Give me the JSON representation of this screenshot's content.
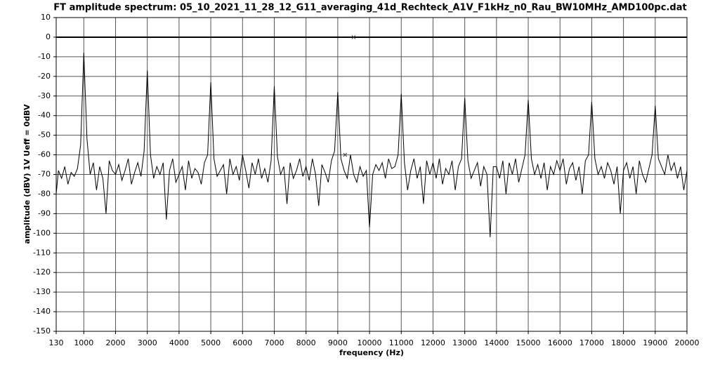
{
  "chart_data": {
    "type": "line",
    "title": "FT amplitude spectrum: 05_10_2021_11_28_12_G11_averaging_41d_Rechteck_A1V_F1kHz_n0_Rau_BW10MHz_AMD100pc.dat",
    "xlabel": "frequency (Hz)",
    "ylabel": "amplitude (dBV) 1V Ueff = 0dBV",
    "xlim": [
      130,
      20000
    ],
    "ylim": [
      -150,
      10
    ],
    "xticks": [
      130,
      1000,
      2000,
      3000,
      4000,
      5000,
      6000,
      7000,
      8000,
      9000,
      10000,
      11000,
      12000,
      13000,
      14000,
      15000,
      16000,
      17000,
      18000,
      19000,
      20000
    ],
    "yticks": [
      -150,
      -140,
      -130,
      -120,
      -110,
      -100,
      -90,
      -80,
      -70,
      -60,
      -50,
      -40,
      -30,
      -20,
      -10,
      0,
      10
    ],
    "grid": true,
    "x": [
      130,
      200,
      300,
      400,
      500,
      600,
      700,
      800,
      900,
      1000,
      1100,
      1200,
      1300,
      1400,
      1500,
      1600,
      1700,
      1800,
      1900,
      2000,
      2100,
      2200,
      2300,
      2400,
      2500,
      2600,
      2700,
      2800,
      2900,
      3000,
      3100,
      3200,
      3300,
      3400,
      3500,
      3600,
      3700,
      3800,
      3900,
      4000,
      4100,
      4200,
      4300,
      4400,
      4500,
      4600,
      4700,
      4800,
      4900,
      5000,
      5100,
      5200,
      5300,
      5400,
      5500,
      5600,
      5700,
      5800,
      5900,
      6000,
      6100,
      6200,
      6300,
      6400,
      6500,
      6600,
      6700,
      6800,
      6900,
      7000,
      7100,
      7200,
      7300,
      7400,
      7500,
      7600,
      7700,
      7800,
      7900,
      8000,
      8100,
      8200,
      8300,
      8400,
      8500,
      8600,
      8700,
      8800,
      8900,
      9000,
      9100,
      9200,
      9300,
      9400,
      9500,
      9600,
      9700,
      9800,
      9900,
      10000,
      10100,
      10200,
      10300,
      10400,
      10500,
      10600,
      10700,
      10800,
      10900,
      11000,
      11100,
      11200,
      11300,
      11400,
      11500,
      11600,
      11700,
      11800,
      11900,
      12000,
      12100,
      12200,
      12300,
      12400,
      12500,
      12600,
      12700,
      12800,
      12900,
      13000,
      13100,
      13200,
      13300,
      13400,
      13500,
      13600,
      13700,
      13800,
      13900,
      14000,
      14100,
      14200,
      14300,
      14400,
      14500,
      14600,
      14700,
      14800,
      14900,
      15000,
      15100,
      15200,
      15300,
      15400,
      15500,
      15600,
      15700,
      15800,
      15900,
      16000,
      16100,
      16200,
      16300,
      16400,
      16500,
      16600,
      16700,
      16800,
      16900,
      17000,
      17100,
      17200,
      17300,
      17400,
      17500,
      17600,
      17700,
      17800,
      17900,
      18000,
      18100,
      18200,
      18300,
      18400,
      18500,
      18600,
      18700,
      18800,
      18900,
      19000,
      19100,
      19200,
      19300,
      19400,
      19500,
      19600,
      19700,
      19800,
      19900,
      20000
    ],
    "series": [
      {
        "color": "#000000",
        "values": [
          -80,
          -68,
          -72,
          -66,
          -75,
          -69,
          -71,
          -67,
          -55,
          -8,
          -52,
          -70,
          -64,
          -78,
          -66,
          -72,
          -90,
          -63,
          -68,
          -70,
          -65,
          -73,
          -68,
          -62,
          -75,
          -69,
          -64,
          -71,
          -58,
          -17,
          -60,
          -72,
          -66,
          -70,
          -64,
          -93,
          -68,
          -62,
          -74,
          -70,
          -66,
          -78,
          -63,
          -72,
          -67,
          -69,
          -75,
          -64,
          -60,
          -23,
          -62,
          -71,
          -68,
          -65,
          -80,
          -62,
          -70,
          -66,
          -73,
          -60,
          -68,
          -77,
          -64,
          -70,
          -62,
          -72,
          -67,
          -74,
          -63,
          -25,
          -61,
          -70,
          -66,
          -85,
          -64,
          -72,
          -68,
          -62,
          -71,
          -66,
          -73,
          -62,
          -70,
          -86,
          -65,
          -69,
          -74,
          -63,
          -58,
          -28,
          -62,
          -68,
          -72,
          -60,
          -70,
          -74,
          -66,
          -71,
          -68,
          -97,
          -70,
          -65,
          -68,
          -64,
          -72,
          -62,
          -67,
          -66,
          -60,
          -29,
          -64,
          -78,
          -68,
          -62,
          -72,
          -66,
          -85,
          -63,
          -70,
          -64,
          -72,
          -62,
          -75,
          -67,
          -70,
          -63,
          -78,
          -66,
          -62,
          -31,
          -63,
          -72,
          -68,
          -64,
          -76,
          -66,
          -70,
          -102,
          -66,
          -66,
          -72,
          -63,
          -80,
          -64,
          -70,
          -62,
          -74,
          -67,
          -60,
          -32,
          -62,
          -70,
          -65,
          -72,
          -64,
          -78,
          -66,
          -70,
          -63,
          -68,
          -62,
          -75,
          -67,
          -64,
          -73,
          -66,
          -80,
          -63,
          -60,
          -33,
          -62,
          -70,
          -66,
          -72,
          -64,
          -68,
          -75,
          -66,
          -90,
          -68,
          -64,
          -72,
          -66,
          -80,
          -63,
          -70,
          -74,
          -67,
          -60,
          -35,
          -62,
          -66,
          -70,
          -60,
          -68,
          -64,
          -72,
          -66,
          -78,
          -68
        ]
      }
    ],
    "markers": [
      {
        "x": 9500,
        "y": 0
      },
      {
        "x": 9230,
        "y": -60
      }
    ]
  }
}
